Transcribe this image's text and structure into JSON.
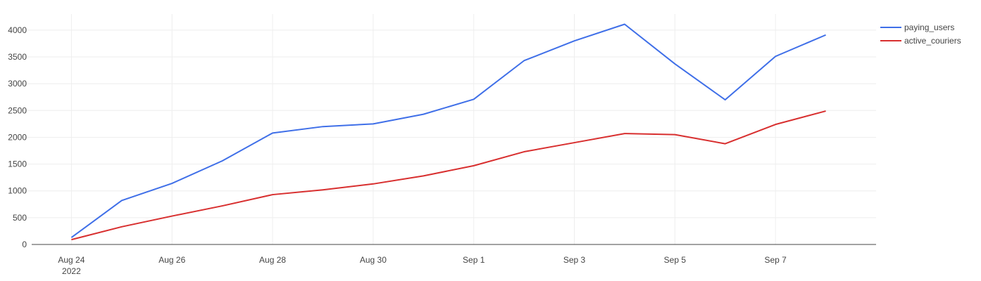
{
  "chart_data": {
    "type": "line",
    "title": "",
    "xlabel": "",
    "ylabel": "",
    "x": [
      "2022-08-24",
      "2022-08-25",
      "2022-08-26",
      "2022-08-27",
      "2022-08-28",
      "2022-08-29",
      "2022-08-30",
      "2022-08-31",
      "2022-09-01",
      "2022-09-02",
      "2022-09-03",
      "2022-09-04",
      "2022-09-05",
      "2022-09-06",
      "2022-09-07",
      "2022-09-08"
    ],
    "xlim": [
      "2022-08-23",
      "2022-09-09"
    ],
    "x_ticks": [
      {
        "value": "2022-08-24",
        "label": "Aug 24",
        "sublabel": "2022"
      },
      {
        "value": "2022-08-26",
        "label": "Aug 26"
      },
      {
        "value": "2022-08-28",
        "label": "Aug 28"
      },
      {
        "value": "2022-08-30",
        "label": "Aug 30"
      },
      {
        "value": "2022-09-01",
        "label": "Sep 1"
      },
      {
        "value": "2022-09-03",
        "label": "Sep 3"
      },
      {
        "value": "2022-09-05",
        "label": "Sep 5"
      },
      {
        "value": "2022-09-07",
        "label": "Sep 7"
      }
    ],
    "ylim": [
      0,
      4300
    ],
    "y_ticks": [
      0,
      500,
      1000,
      1500,
      2000,
      2500,
      3000,
      3500,
      4000
    ],
    "grid": true,
    "legend_position": "top-right",
    "series": [
      {
        "name": "paying_users",
        "color": "#3f6fe8",
        "values": [
          130,
          820,
          1140,
          1560,
          2080,
          2200,
          2250,
          2430,
          2710,
          3430,
          3800,
          4110,
          3370,
          2700,
          3510,
          3910
        ]
      },
      {
        "name": "active_couriers",
        "color": "#d82f2f",
        "values": [
          90,
          330,
          530,
          720,
          930,
          1020,
          1130,
          1280,
          1470,
          1730,
          1900,
          2070,
          2050,
          1880,
          2240,
          2490
        ]
      }
    ]
  }
}
